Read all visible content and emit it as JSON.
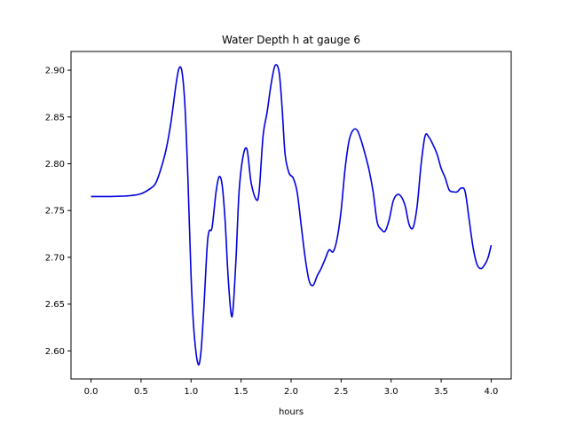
{
  "chart_data": {
    "type": "line",
    "title": "Water Depth h at gauge 6",
    "xlabel": "hours",
    "ylabel": "",
    "xlim": [
      -0.2,
      4.2
    ],
    "ylim": [
      2.57,
      2.92
    ],
    "x_ticks": [
      0.0,
      0.5,
      1.0,
      1.5,
      2.0,
      2.5,
      3.0,
      3.5,
      4.0
    ],
    "x_tick_labels": [
      "0.0",
      "0.5",
      "1.0",
      "1.5",
      "2.0",
      "2.5",
      "3.0",
      "3.5",
      "4.0"
    ],
    "y_ticks": [
      2.6,
      2.65,
      2.7,
      2.75,
      2.8,
      2.85,
      2.9
    ],
    "y_tick_labels": [
      "2.60",
      "2.65",
      "2.70",
      "2.75",
      "2.80",
      "2.85",
      "2.90"
    ],
    "grid": false,
    "series": [
      {
        "color": "#0000dd",
        "points": [
          [
            0.0,
            2.765
          ],
          [
            0.2,
            2.765
          ],
          [
            0.4,
            2.766
          ],
          [
            0.5,
            2.768
          ],
          [
            0.6,
            2.774
          ],
          [
            0.65,
            2.78
          ],
          [
            0.7,
            2.795
          ],
          [
            0.75,
            2.815
          ],
          [
            0.8,
            2.845
          ],
          [
            0.85,
            2.885
          ],
          [
            0.88,
            2.902
          ],
          [
            0.91,
            2.898
          ],
          [
            0.94,
            2.86
          ],
          [
            0.97,
            2.78
          ],
          [
            1.0,
            2.68
          ],
          [
            1.03,
            2.62
          ],
          [
            1.07,
            2.586
          ],
          [
            1.1,
            2.6
          ],
          [
            1.13,
            2.65
          ],
          [
            1.16,
            2.71
          ],
          [
            1.18,
            2.728
          ],
          [
            1.21,
            2.732
          ],
          [
            1.25,
            2.77
          ],
          [
            1.28,
            2.786
          ],
          [
            1.31,
            2.778
          ],
          [
            1.34,
            2.74
          ],
          [
            1.37,
            2.68
          ],
          [
            1.4,
            2.64
          ],
          [
            1.42,
            2.645
          ],
          [
            1.45,
            2.7
          ],
          [
            1.48,
            2.77
          ],
          [
            1.52,
            2.808
          ],
          [
            1.56,
            2.815
          ],
          [
            1.6,
            2.78
          ],
          [
            1.65,
            2.762
          ],
          [
            1.68,
            2.77
          ],
          [
            1.72,
            2.83
          ],
          [
            1.76,
            2.855
          ],
          [
            1.8,
            2.885
          ],
          [
            1.84,
            2.905
          ],
          [
            1.88,
            2.898
          ],
          [
            1.91,
            2.86
          ],
          [
            1.94,
            2.81
          ],
          [
            1.98,
            2.79
          ],
          [
            2.02,
            2.785
          ],
          [
            2.06,
            2.77
          ],
          [
            2.1,
            2.735
          ],
          [
            2.14,
            2.7
          ],
          [
            2.18,
            2.675
          ],
          [
            2.22,
            2.67
          ],
          [
            2.26,
            2.68
          ],
          [
            2.3,
            2.688
          ],
          [
            2.34,
            2.698
          ],
          [
            2.38,
            2.708
          ],
          [
            2.42,
            2.706
          ],
          [
            2.46,
            2.72
          ],
          [
            2.5,
            2.75
          ],
          [
            2.54,
            2.795
          ],
          [
            2.58,
            2.825
          ],
          [
            2.62,
            2.836
          ],
          [
            2.66,
            2.836
          ],
          [
            2.7,
            2.825
          ],
          [
            2.74,
            2.81
          ],
          [
            2.78,
            2.793
          ],
          [
            2.82,
            2.77
          ],
          [
            2.86,
            2.738
          ],
          [
            2.9,
            2.73
          ],
          [
            2.94,
            2.728
          ],
          [
            2.98,
            2.74
          ],
          [
            3.02,
            2.76
          ],
          [
            3.06,
            2.767
          ],
          [
            3.1,
            2.765
          ],
          [
            3.14,
            2.755
          ],
          [
            3.18,
            2.735
          ],
          [
            3.22,
            2.732
          ],
          [
            3.26,
            2.755
          ],
          [
            3.3,
            2.8
          ],
          [
            3.34,
            2.83
          ],
          [
            3.38,
            2.828
          ],
          [
            3.42,
            2.82
          ],
          [
            3.46,
            2.81
          ],
          [
            3.5,
            2.795
          ],
          [
            3.54,
            2.785
          ],
          [
            3.58,
            2.772
          ],
          [
            3.62,
            2.77
          ],
          [
            3.66,
            2.77
          ],
          [
            3.7,
            2.774
          ],
          [
            3.74,
            2.77
          ],
          [
            3.78,
            2.74
          ],
          [
            3.82,
            2.71
          ],
          [
            3.86,
            2.692
          ],
          [
            3.9,
            2.688
          ],
          [
            3.94,
            2.693
          ],
          [
            3.97,
            2.7
          ],
          [
            4.0,
            2.713
          ]
        ]
      }
    ]
  }
}
